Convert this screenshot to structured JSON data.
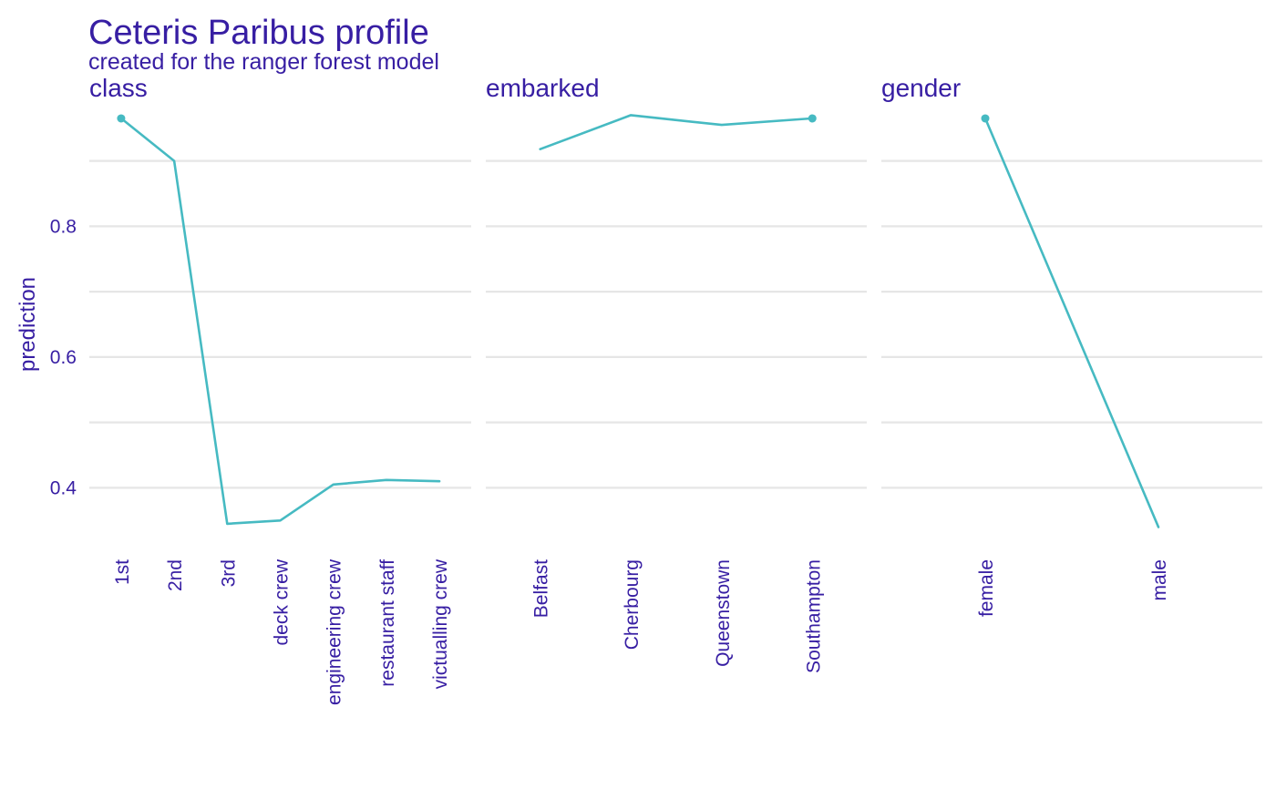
{
  "chart_data": {
    "type": "line",
    "title": "Ceteris Paribus profile",
    "subtitle": "created for the ranger forest model",
    "ylabel": "prediction",
    "ylim": [
      0.31,
      0.99
    ],
    "yticks": [
      0.4,
      0.6,
      0.8
    ],
    "y_minor_gridlines": [
      0.5,
      0.7,
      0.9
    ],
    "grid": true,
    "legend": "none",
    "line_color": "#46bac2",
    "text_color": "#371ea3",
    "panels": [
      {
        "name": "class",
        "categories": [
          "1st",
          "2nd",
          "3rd",
          "deck crew",
          "engineering crew",
          "restaurant staff",
          "victualling crew"
        ],
        "values": [
          0.965,
          0.9,
          0.345,
          0.35,
          0.405,
          0.412,
          0.41
        ],
        "observed_category": "1st",
        "observed_value": 0.965
      },
      {
        "name": "embarked",
        "categories": [
          "Belfast",
          "Cherbourg",
          "Queenstown",
          "Southampton"
        ],
        "values": [
          0.918,
          0.97,
          0.955,
          0.965
        ],
        "observed_category": "Southampton",
        "observed_value": 0.965
      },
      {
        "name": "gender",
        "categories": [
          "female",
          "male"
        ],
        "values": [
          0.965,
          0.34
        ],
        "observed_category": "female",
        "observed_value": 0.965
      }
    ]
  }
}
